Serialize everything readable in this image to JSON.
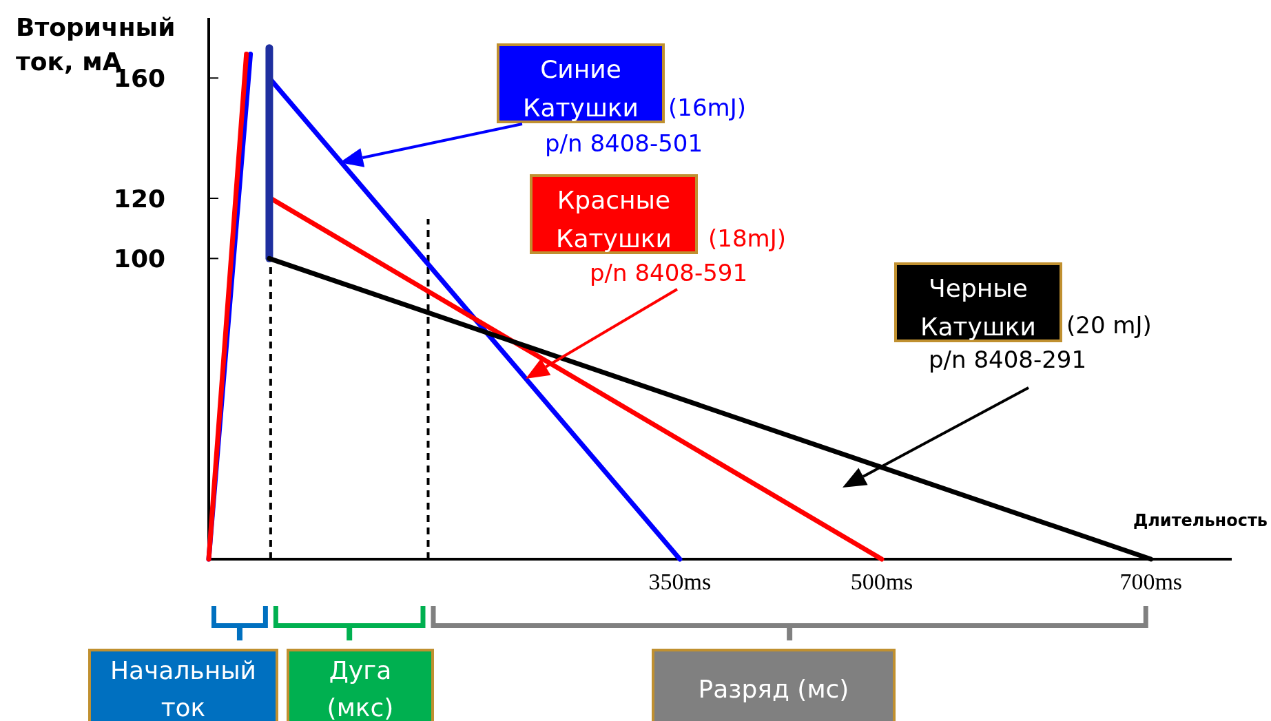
{
  "chart_data": {
    "type": "line",
    "xlabel": "Длительность",
    "ylabel": "Вторичный ток, мА",
    "xlim": [
      0,
      760
    ],
    "ylim": [
      0,
      180
    ],
    "xticks": [
      {
        "value": 350,
        "label": "350ms"
      },
      {
        "value": 500,
        "label": "500ms"
      },
      {
        "value": 700,
        "label": "700ms"
      }
    ],
    "yticks": [
      100,
      120,
      160
    ],
    "line_style": "solid",
    "marker": "none",
    "series": [
      {
        "name": "Синие Катушки",
        "color": "#0000ff",
        "x": [
          0,
          31,
          38,
          45,
          350
        ],
        "values": [
          0,
          168,
          null,
          160,
          0
        ]
      },
      {
        "name": "Красные Катушки",
        "color": "#ff0000",
        "x": [
          0,
          28,
          37,
          46,
          500
        ],
        "values": [
          0,
          168,
          null,
          120,
          0
        ]
      },
      {
        "color": "#1f2f9f",
        "x": [
          45,
          45
        ],
        "values": [
          170,
          100
        ]
      },
      {
        "name": "Черные Катушки",
        "color": "#000000",
        "x": [
          45,
          700
        ],
        "values": [
          100,
          0
        ]
      }
    ],
    "ref_lines": [
      {
        "axis": "x",
        "value": 46,
        "color": "#000000",
        "line_style": "dashed"
      },
      {
        "axis": "x",
        "value": 163,
        "color": "#000000",
        "line_style": "dashed"
      }
    ],
    "annotations": [
      "(16mJ)",
      "p/n 8408-501",
      "(18mJ)",
      "p/n 8408-591",
      "(20 mJ)",
      "p/n 8408-291",
      "Начальный ток",
      "Дуга (мкс)",
      "Разряд (мс)"
    ]
  }
}
